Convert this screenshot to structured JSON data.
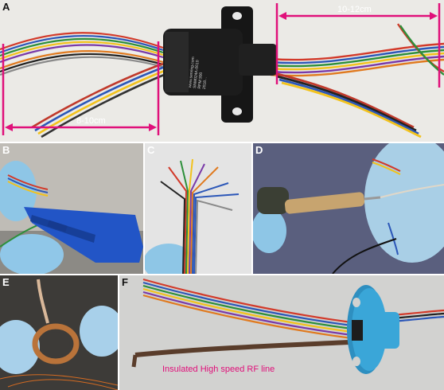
{
  "figure": {
    "panels": [
      {
        "label": "A"
      },
      {
        "label": "B"
      },
      {
        "label": "C"
      },
      {
        "label": "D"
      },
      {
        "label": "E"
      },
      {
        "label": "F"
      }
    ],
    "panel_a": {
      "left_dimension": "8-10cm",
      "right_dimension": "10-12cm",
      "ring_text_lines": [
        "www.senring.com",
        "SNM024A-0610",
        "RPM:300",
        "2018..."
      ]
    },
    "panel_f": {
      "caption": "Insulated High speed RF line"
    },
    "colors": {
      "dimension_line": "#e0107a",
      "caption": "#e0107a"
    }
  }
}
